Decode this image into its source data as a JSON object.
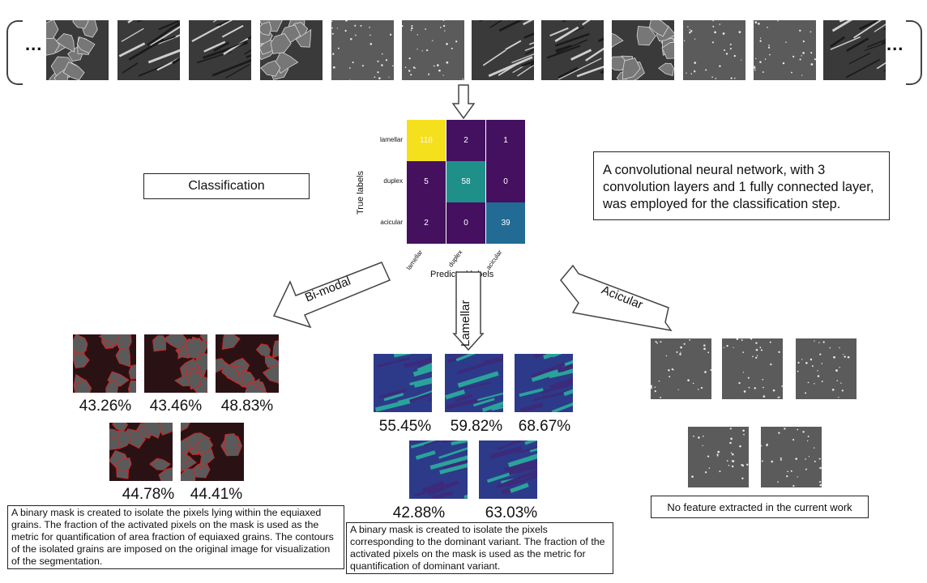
{
  "top_strip": {
    "left_ellipsis": "...",
    "right_ellipsis": "...",
    "thumbnails": [
      {
        "kind": "bimodal"
      },
      {
        "kind": "lamellar"
      },
      {
        "kind": "lamellar"
      },
      {
        "kind": "bimodal"
      },
      {
        "kind": "acicular"
      },
      {
        "kind": "acicular"
      },
      {
        "kind": "lamellar"
      },
      {
        "kind": "lamellar"
      },
      {
        "kind": "bimodal"
      },
      {
        "kind": "acicular"
      },
      {
        "kind": "acicular"
      },
      {
        "kind": "lamellar"
      }
    ]
  },
  "classification_label": "Classification",
  "cnn_note": "A convolutional neural network, with 3 convolution layers and 1 fully connected layer, was employed for the classification step.",
  "confusion_matrix": {
    "ylabel": "True labels",
    "xlabel": "Predicted labels",
    "row_labels": [
      "lamellar",
      "duplex",
      "acicular"
    ],
    "col_labels": [
      "lamellar",
      "duplex",
      "acicular"
    ],
    "values": [
      [
        "118",
        "2",
        "1"
      ],
      [
        "5",
        "58",
        "0"
      ],
      [
        "2",
        "0",
        "39"
      ]
    ],
    "colors": [
      [
        "#f5e01d",
        "#43115f",
        "#43115f"
      ],
      [
        "#45115f",
        "#1f8f8a",
        "#44105f"
      ],
      [
        "#45115f",
        "#44105f",
        "#216b94"
      ]
    ]
  },
  "branches": {
    "bimodal": {
      "label": "Bi-modal",
      "percentages": [
        "43.26%",
        "43.46%",
        "48.83%",
        "44.78%",
        "44.41%"
      ],
      "description": "A binary mask is created to isolate the pixels lying within the equiaxed grains. The fraction of the activated pixels on the mask is used as the metric for quantification of area fraction of equiaxed grains. The contours of the isolated grains are imposed on the original image for visualization of the segmentation."
    },
    "lamellar": {
      "label": "Lamellar",
      "percentages": [
        "55.45%",
        "59.82%",
        "68.67%",
        "42.88%",
        "63.03%"
      ],
      "description": "A binary mask is created to isolate the pixels corresponding to the dominant variant. The fraction of the activated pixels on the mask is used as the metric for quantification of dominant variant."
    },
    "acicular": {
      "label": "Acicular",
      "description": "No feature extracted in the current work"
    }
  }
}
